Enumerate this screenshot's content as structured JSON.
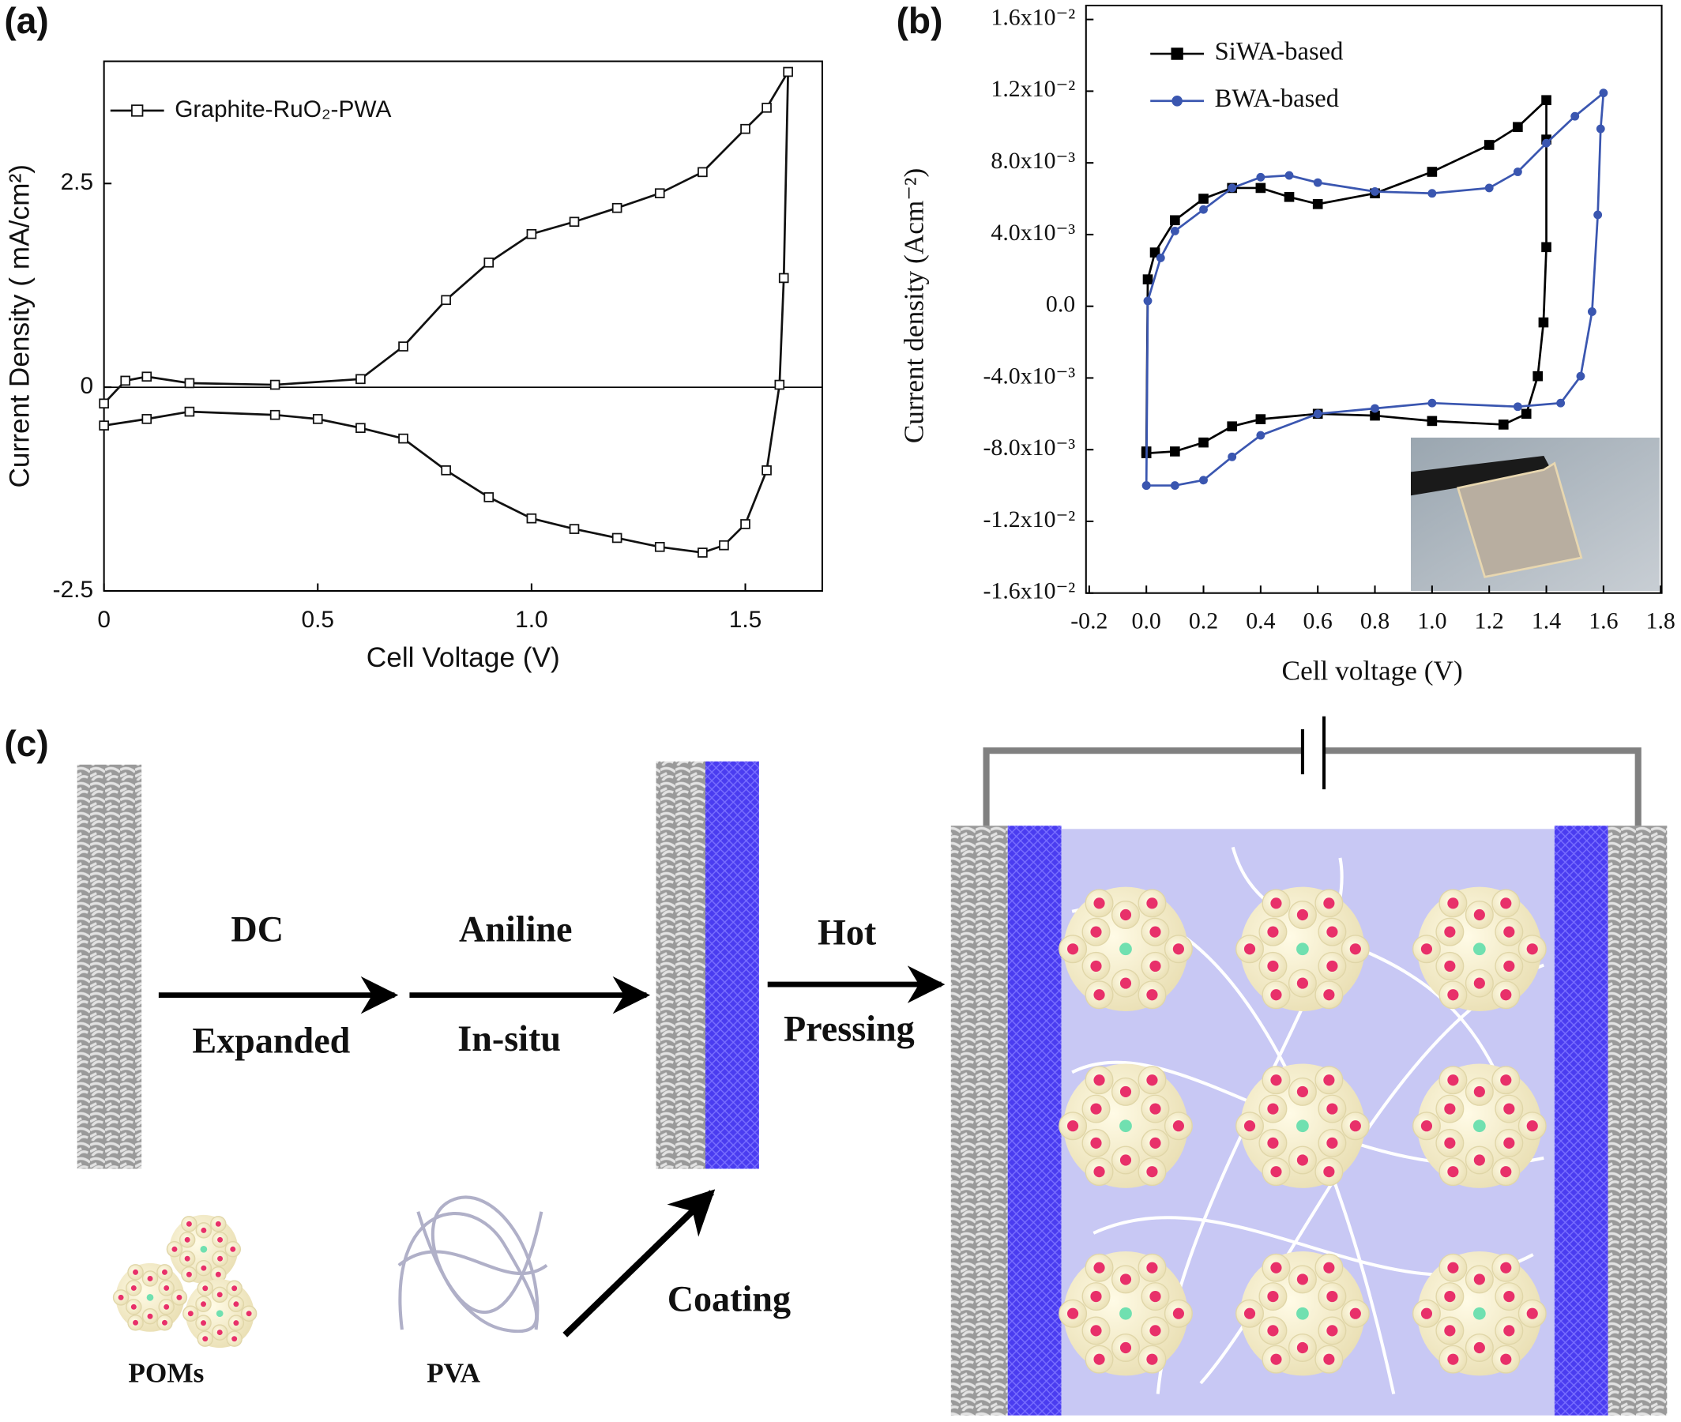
{
  "panel_labels": [
    "(a)",
    "(b)",
    "(c)"
  ],
  "chart_data": [
    {
      "type": "line",
      "xlabel": "Cell Voltage (V)",
      "ylabel": "Current Density ( mA/cm²)",
      "xlim": [
        0,
        1.68
      ],
      "ylim": [
        -2.5,
        4.0
      ],
      "xticks": [
        0,
        0.5,
        {
          "value": 1.0,
          "label": "1.0"
        },
        1.5
      ],
      "yticks": [
        -2.5,
        0,
        2.5
      ],
      "zero_line": true,
      "legend": "upper left",
      "series": [
        {
          "name": "Graphite-RuO₂-PWA",
          "color": "#111111",
          "marker": "square",
          "x": [
            0,
            0.05,
            0.1,
            0.2,
            0.4,
            0.6,
            0.7,
            0.8,
            0.9,
            1.0,
            1.1,
            1.2,
            1.3,
            1.4,
            1.5,
            1.55,
            1.6,
            1.59,
            1.58,
            1.55,
            1.5,
            1.45,
            1.4,
            1.3,
            1.2,
            1.1,
            1.0,
            0.9,
            0.8,
            0.7,
            0.6,
            0.5,
            0.4,
            0.2,
            0.1,
            0
          ],
          "values": [
            -0.2,
            0.08,
            0.13,
            0.05,
            0.03,
            0.1,
            0.5,
            1.07,
            1.53,
            1.88,
            2.03,
            2.2,
            2.38,
            2.64,
            3.17,
            3.43,
            3.87,
            1.34,
            0.03,
            -1.02,
            -1.68,
            -1.94,
            -2.03,
            -1.96,
            -1.85,
            -1.74,
            -1.61,
            -1.35,
            -1.02,
            -0.63,
            -0.5,
            -0.39,
            -0.34,
            -0.3,
            -0.39,
            -0.47
          ]
        }
      ]
    },
    {
      "type": "line",
      "xlabel": "Cell voltage (V)",
      "ylabel": "Current density (Acm⁻²)",
      "xlim": [
        -0.2,
        1.8
      ],
      "ylim": [
        -0.016,
        0.016
      ],
      "xticks": [
        -0.2,
        {
          "value": 0.0,
          "label": "0.0"
        },
        0.2,
        0.4,
        0.6,
        0.8,
        {
          "value": 1.0,
          "label": "1.0"
        },
        1.2,
        1.4,
        1.6,
        1.8
      ],
      "yticks": [
        {
          "value": 0.016,
          "label": "1.6x10⁻²"
        },
        {
          "value": 0.012,
          "label": "1.2x10⁻²"
        },
        {
          "value": 0.008,
          "label": "8.0x10⁻³"
        },
        {
          "value": 0.004,
          "label": "4.0x10⁻³"
        },
        {
          "value": 0,
          "label": "0.0"
        },
        {
          "value": -0.004,
          "label": "-4.0x10⁻³"
        },
        {
          "value": -0.008,
          "label": "-8.0x10⁻³"
        },
        {
          "value": -0.012,
          "label": "-1.2x10⁻²"
        },
        {
          "value": -0.016,
          "label": "-1.6x10⁻²"
        }
      ],
      "legend": "upper left",
      "series": [
        {
          "name": "SiWA-based",
          "color": "#000000",
          "marker": "square",
          "x": [
            0,
            0.005,
            0.03,
            0.1,
            0.2,
            0.3,
            0.4,
            0.5,
            0.6,
            0.8,
            1.0,
            1.2,
            1.3,
            1.4,
            1.4,
            1.4,
            1.39,
            1.37,
            1.33,
            1.25,
            1.0,
            0.8,
            0.6,
            0.4,
            0.3,
            0.2,
            0.1,
            0
          ],
          "values": [
            -0.0081,
            0.0015,
            0.003,
            0.0048,
            0.006,
            0.0066,
            0.0066,
            0.0061,
            0.0057,
            0.0063,
            0.0075,
            0.009,
            0.01,
            0.0115,
            0.0093,
            0.0033,
            -0.0009,
            -0.0039,
            -0.006,
            -0.0066,
            -0.0064,
            -0.0061,
            -0.006,
            -0.0063,
            -0.0067,
            -0.0076,
            -0.0081,
            -0.0082
          ]
        },
        {
          "name": "BWA-based",
          "color": "#3a56b0",
          "marker": "circle",
          "x": [
            0,
            0.005,
            0.05,
            0.1,
            0.2,
            0.3,
            0.4,
            0.5,
            0.6,
            0.8,
            1.0,
            1.2,
            1.3,
            1.4,
            1.5,
            1.6,
            1.59,
            1.58,
            1.56,
            1.52,
            1.45,
            1.3,
            1.0,
            0.8,
            0.6,
            0.4,
            0.3,
            0.2,
            0.1,
            0
          ],
          "values": [
            -0.01,
            0.0003,
            0.0027,
            0.0042,
            0.0054,
            0.0066,
            0.0072,
            0.0073,
            0.0069,
            0.0064,
            0.0063,
            0.0066,
            0.0075,
            0.0091,
            0.0106,
            0.0119,
            0.0099,
            0.0051,
            -0.0003,
            -0.0039,
            -0.0054,
            -0.0056,
            -0.0054,
            -0.0057,
            -0.006,
            -0.0072,
            -0.0084,
            -0.0097,
            -0.01,
            -0.01
          ]
        }
      ]
    }
  ],
  "diagram": {
    "steps": [
      {
        "top": "DC",
        "bottom": "Expanded"
      },
      {
        "top": "Aniline",
        "bottom": "In-situ"
      },
      {
        "top": "Hot",
        "bottom": "Pressing"
      }
    ],
    "coating": "Coating",
    "materials": [
      "POMs",
      "PVA"
    ]
  }
}
